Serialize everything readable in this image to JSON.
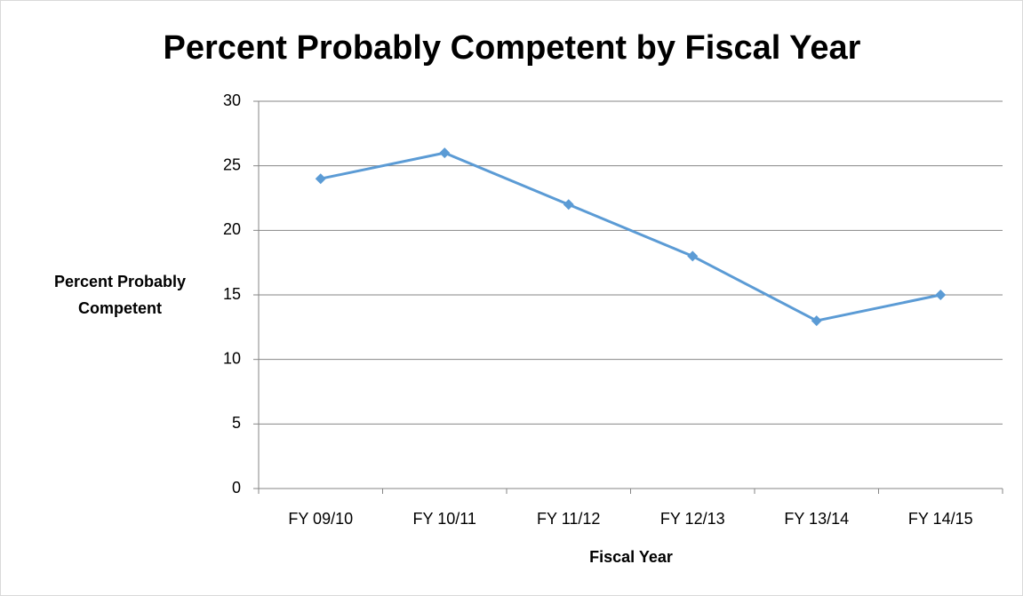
{
  "chart_data": {
    "type": "line",
    "title": "Percent Probably Competent by Fiscal Year",
    "x_label": "Fiscal Year",
    "y_label": "Percent Probably Competent",
    "categories": [
      "FY 09/10",
      "FY 10/11",
      "FY 11/12",
      "FY 12/13",
      "FY 13/14",
      "FY 14/15"
    ],
    "values": [
      24,
      26,
      22,
      18,
      13,
      15
    ],
    "color": "#5b9bd5",
    "ylim": [
      0,
      30
    ],
    "yticks": [
      0,
      5,
      10,
      15,
      20,
      25,
      30
    ],
    "grid": true
  }
}
